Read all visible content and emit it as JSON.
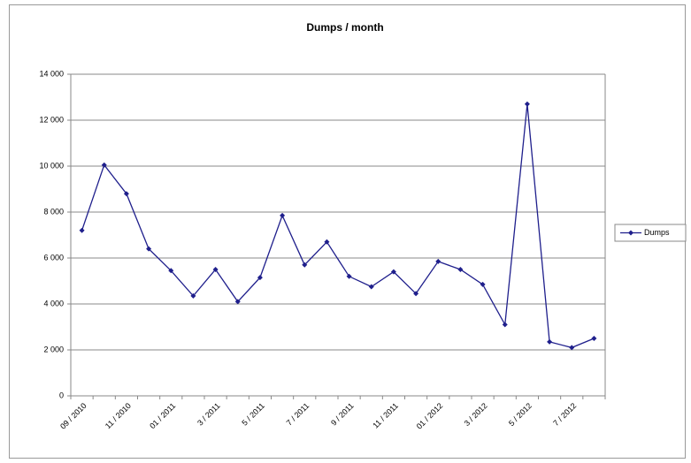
{
  "chart_data": {
    "type": "line",
    "title": "Dumps / month",
    "categories": [
      "09 / 2010",
      null,
      "11 / 2010",
      null,
      "01 / 2011",
      null,
      "3 / 2011",
      null,
      "5 / 2011",
      null,
      "7 / 2011",
      null,
      "9 / 2011",
      null,
      "11 / 2011",
      null,
      "01 / 2012",
      null,
      "3 / 2012",
      null,
      "5 / 2012",
      null,
      "7 / 2012",
      null
    ],
    "series": [
      {
        "name": "Dumps",
        "color": "#1f1f8c",
        "values": [
          7200,
          10050,
          8800,
          6400,
          5450,
          4350,
          5500,
          4100,
          5150,
          7850,
          5700,
          6700,
          5200,
          4750,
          5400,
          4450,
          5850,
          5500,
          4850,
          3100,
          12700,
          2350,
          2100,
          2500
        ]
      }
    ],
    "ylim": [
      0,
      14000
    ],
    "yticks": [
      0,
      {
        "value": 2000,
        "label": "2 000"
      },
      {
        "value": 4000,
        "label": "4 000"
      },
      {
        "value": 6000,
        "label": "6 000"
      },
      {
        "value": 8000,
        "label": "8 000"
      },
      {
        "value": 10000,
        "label": "10 000"
      },
      {
        "value": 12000,
        "label": "12 000"
      },
      {
        "value": 14000,
        "label": "14 000"
      }
    ],
    "grid": true,
    "legend": "right"
  }
}
